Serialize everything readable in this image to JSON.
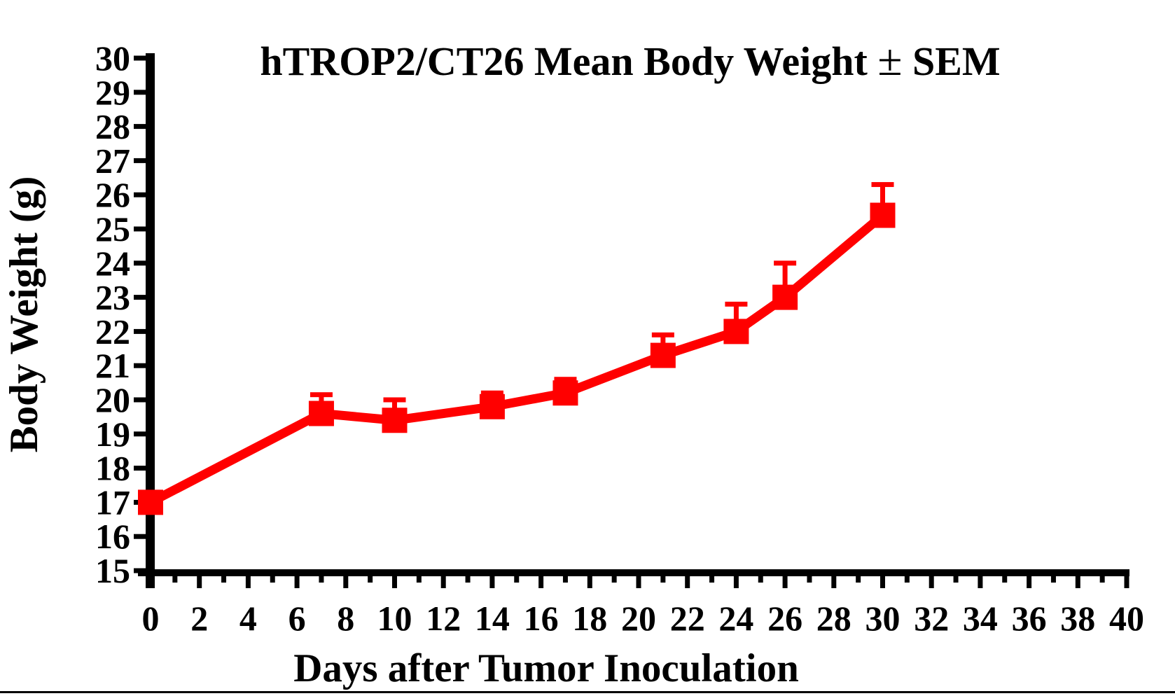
{
  "page": {
    "background": "#ffffff",
    "bottom_rule_color": "#000000"
  },
  "chart_data": {
    "type": "line",
    "title": "hTROP2/CT26 Mean Body Weight ± SEM",
    "xlabel": "Days after Tumor Inoculation",
    "ylabel": "Body Weight (g)",
    "x": [
      0,
      7,
      10,
      14,
      17,
      21,
      24,
      26,
      30
    ],
    "series": [
      {
        "name": "hTROP2/CT26 Mean Body Weight",
        "values": [
          17.0,
          19.6,
          19.4,
          19.8,
          20.2,
          21.3,
          22.0,
          23.0,
          25.4
        ],
        "sem_upper": [
          0,
          0.55,
          0.6,
          0.4,
          0.4,
          0.6,
          0.8,
          1.0,
          0.9
        ],
        "color": "#ff0000",
        "marker": "square"
      }
    ],
    "xlim": [
      0,
      40
    ],
    "ylim": [
      15,
      30
    ],
    "x_ticks": [
      0,
      2,
      4,
      6,
      8,
      10,
      12,
      14,
      16,
      18,
      20,
      22,
      24,
      26,
      28,
      30,
      32,
      34,
      36,
      38,
      40
    ],
    "x_minor_tick_step": 1,
    "y_ticks": [
      15,
      16,
      17,
      18,
      19,
      20,
      21,
      22,
      23,
      24,
      25,
      26,
      27,
      28,
      29,
      30
    ],
    "grid": false,
    "legend": "none",
    "error_bars": "upper_only",
    "axis_color": "#000000"
  }
}
